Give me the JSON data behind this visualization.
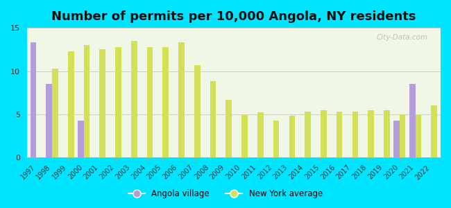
{
  "title": "Number of permits per 10,000 Angola, NY residents",
  "years": [
    1997,
    1998,
    1999,
    2000,
    2001,
    2002,
    2003,
    2004,
    2005,
    2006,
    2007,
    2008,
    2009,
    2010,
    2011,
    2012,
    2013,
    2014,
    2015,
    2016,
    2017,
    2018,
    2019,
    2020,
    2021,
    2022
  ],
  "angola_values": [
    13.3,
    8.5,
    null,
    4.3,
    null,
    null,
    null,
    null,
    null,
    null,
    null,
    null,
    null,
    null,
    null,
    null,
    null,
    null,
    null,
    null,
    null,
    null,
    null,
    4.3,
    8.5,
    null
  ],
  "ny_values": [
    null,
    10.3,
    12.3,
    13.0,
    12.5,
    12.8,
    13.5,
    12.8,
    12.8,
    13.3,
    10.7,
    8.8,
    6.7,
    5.0,
    5.2,
    4.3,
    4.8,
    5.3,
    5.5,
    5.3,
    5.3,
    5.5,
    5.5,
    5.0,
    5.0,
    6.0
  ],
  "angola_color": "#b39ddb",
  "ny_color": "#d4e157",
  "background_color": "#00e5ff",
  "plot_bg_color": "#f0f7e6",
  "ylim": [
    0,
    15
  ],
  "yticks": [
    0,
    5,
    10,
    15
  ],
  "title_fontsize": 13,
  "watermark": "City-Data.com",
  "legend_angola": "Angola village",
  "legend_ny": "New York average"
}
